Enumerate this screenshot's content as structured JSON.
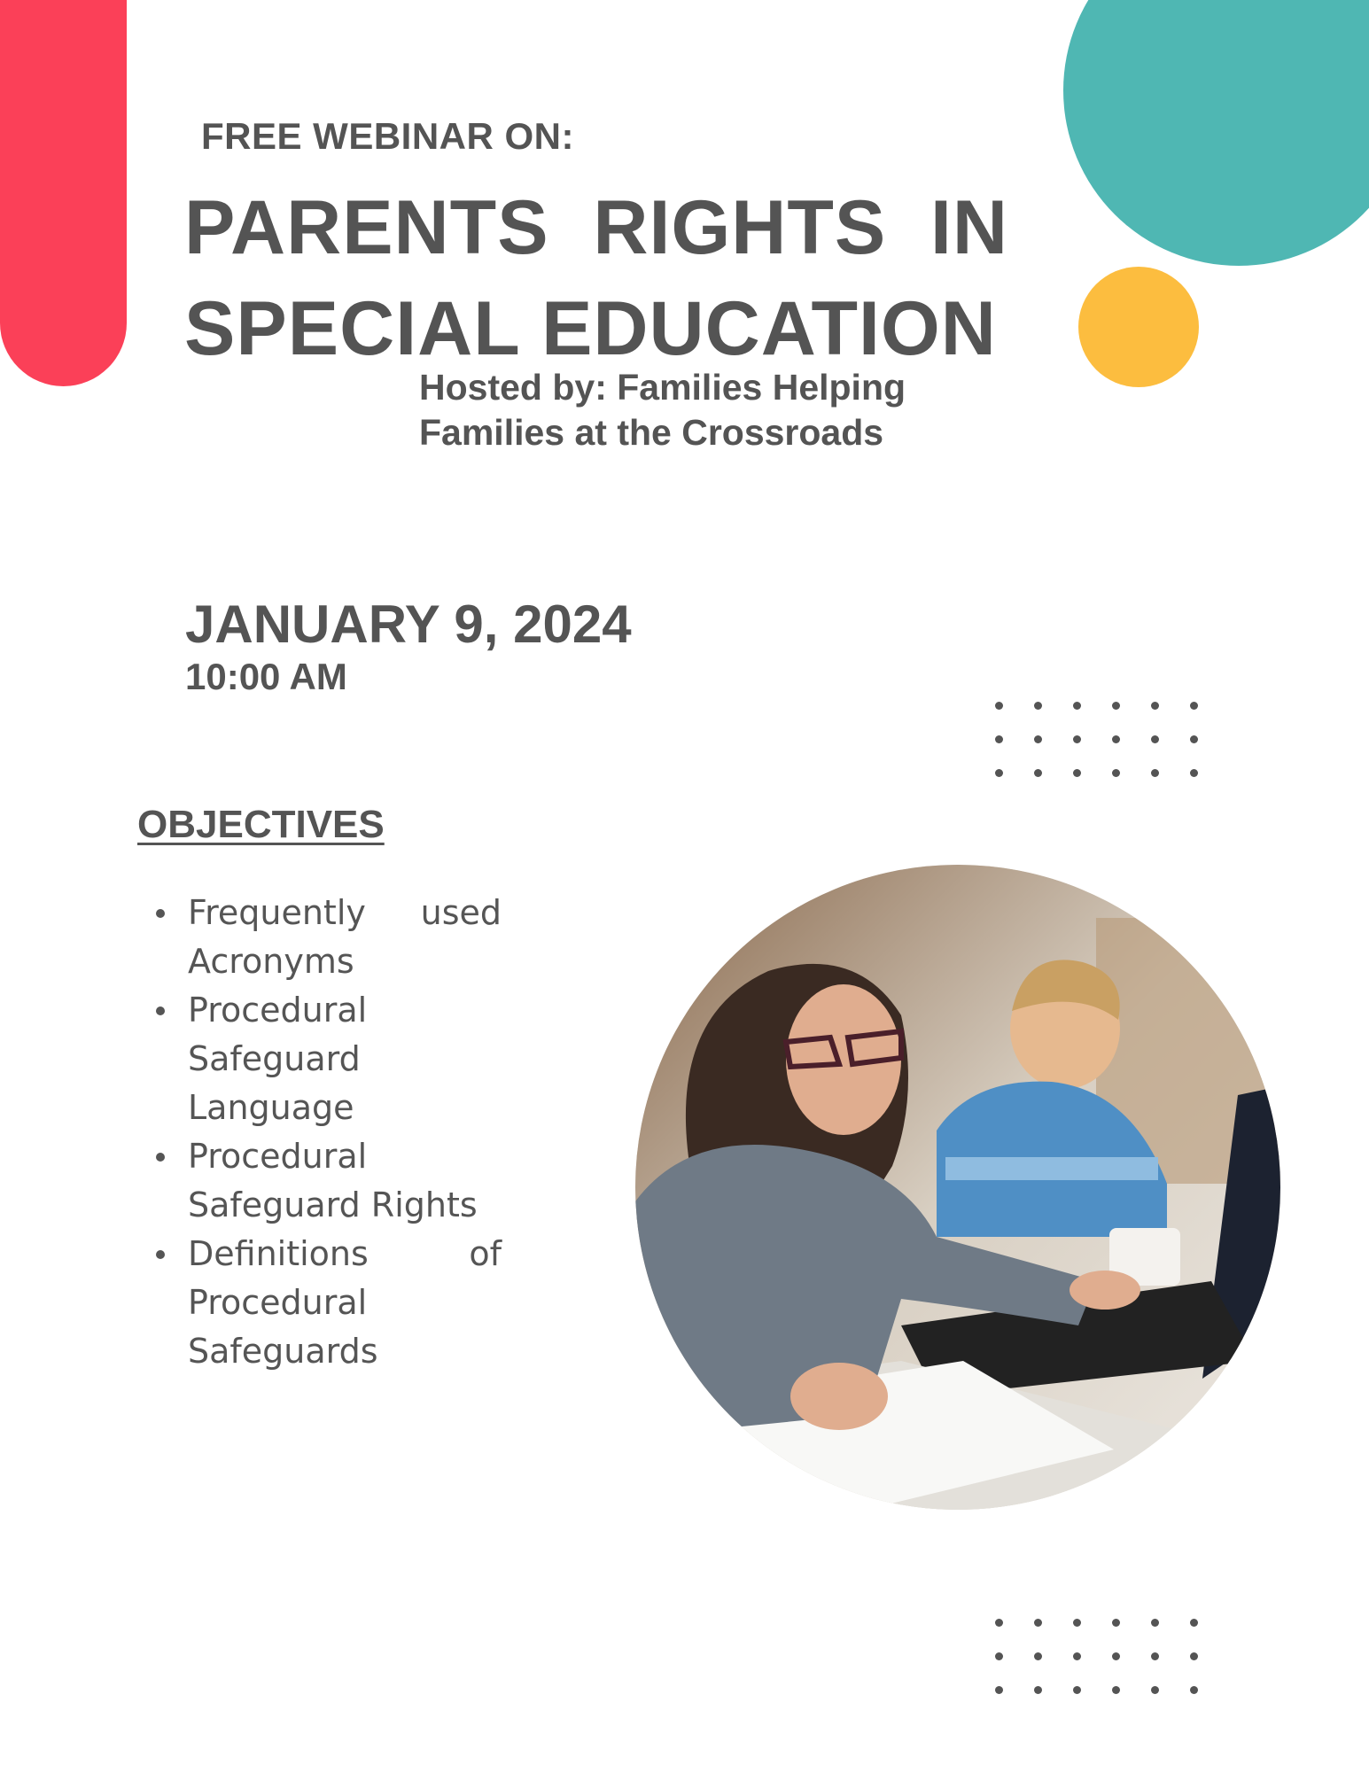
{
  "header": {
    "kicker": "FREE WEBINAR ON:",
    "title_line1": "PARENTS  RIGHTS  IN",
    "title_line2": "SPECIAL EDUCATION",
    "host_line1": "Hosted by: Families Helping",
    "host_line2": "Families at the Crossroads"
  },
  "event": {
    "date": "JANUARY 9, 2024",
    "time": "10:00 AM"
  },
  "objectives": {
    "heading": "OBJECTIVES",
    "items": [
      "Frequently used Acronyms",
      "Procedural Safeguard Language",
      "Procedural Safeguard Rights",
      "Definitions of Procedural Safeguards"
    ]
  },
  "colors": {
    "accent_red": "#fb4058",
    "accent_teal": "#4fb7b3",
    "accent_yellow": "#fcbd3f",
    "text": "#545454"
  }
}
